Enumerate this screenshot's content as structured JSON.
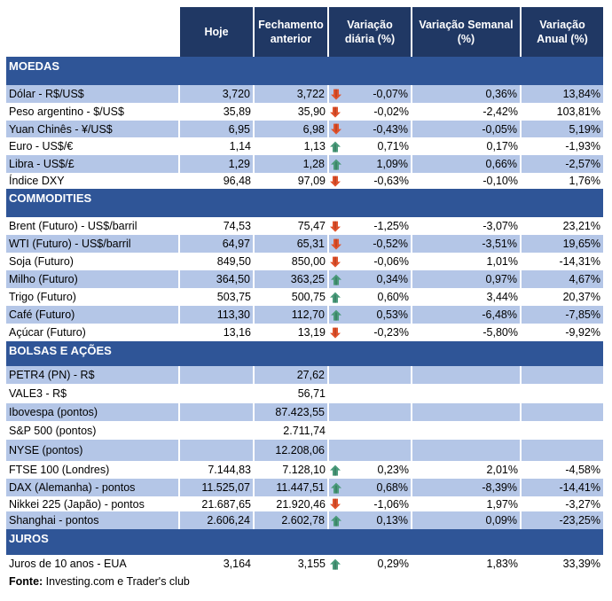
{
  "colors": {
    "header": "#203864",
    "section": "#2f5597",
    "row_alt": "#b4c6e7",
    "up": "#4a9a7a",
    "down": "#e0522c"
  },
  "headers": [
    "Hoje",
    "Fechamento anterior",
    "Variação diária (%)",
    "Variação Semanal (%)",
    "Variação Anual (%)"
  ],
  "sections": [
    {
      "title": "MOEDAS",
      "rows": [
        {
          "label": "Dólar - R$/US$",
          "hoje": "3,720",
          "fech": "3,722",
          "dir": "down",
          "dia": "-0,07%",
          "sem": "0,36%",
          "ano": "13,84%"
        },
        {
          "label": "Peso argentino - $/US$",
          "hoje": "35,89",
          "fech": "35,90",
          "dir": "down",
          "dia": "-0,02%",
          "sem": "-2,42%",
          "ano": "103,81%"
        },
        {
          "label": "Yuan Chinês - ¥/US$",
          "hoje": "6,95",
          "fech": "6,98",
          "dir": "down",
          "dia": "-0,43%",
          "sem": "-0,05%",
          "ano": "5,19%"
        },
        {
          "label": "Euro - US$/€",
          "hoje": "1,14",
          "fech": "1,13",
          "dir": "up",
          "dia": "0,71%",
          "sem": "0,17%",
          "ano": "-1,93%"
        },
        {
          "label": "Libra - US$/£",
          "hoje": "1,29",
          "fech": "1,28",
          "dir": "up",
          "dia": "1,09%",
          "sem": "0,66%",
          "ano": "-2,57%"
        },
        {
          "label": "Índice DXY",
          "hoje": "96,48",
          "fech": "97,09",
          "dir": "down",
          "dia": "-0,63%",
          "sem": "-0,10%",
          "ano": "1,76%"
        }
      ]
    },
    {
      "title": "COMMODITIES",
      "rows": [
        {
          "label": "Brent (Futuro) - US$/barril",
          "hoje": "74,53",
          "fech": "75,47",
          "dir": "down",
          "dia": "-1,25%",
          "sem": "-3,07%",
          "ano": "23,21%"
        },
        {
          "label": "WTI (Futuro) - US$/barril",
          "hoje": "64,97",
          "fech": "65,31",
          "dir": "down",
          "dia": "-0,52%",
          "sem": "-3,51%",
          "ano": "19,65%"
        },
        {
          "label": "Soja (Futuro)",
          "hoje": "849,50",
          "fech": "850,00",
          "dir": "down",
          "dia": "-0,06%",
          "sem": "1,01%",
          "ano": "-14,31%"
        },
        {
          "label": "Milho (Futuro)",
          "hoje": "364,50",
          "fech": "363,25",
          "dir": "up",
          "dia": "0,34%",
          "sem": "0,97%",
          "ano": "4,67%"
        },
        {
          "label": "Trigo (Futuro)",
          "hoje": "503,75",
          "fech": "500,75",
          "dir": "up",
          "dia": "0,60%",
          "sem": "3,44%",
          "ano": "20,37%"
        },
        {
          "label": "Café (Futuro)",
          "hoje": "113,30",
          "fech": "112,70",
          "dir": "up",
          "dia": "0,53%",
          "sem": "-6,48%",
          "ano": "-7,85%"
        },
        {
          "label": "Açúcar (Futuro)",
          "hoje": "13,16",
          "fech": "13,19",
          "dir": "down",
          "dia": "-0,23%",
          "sem": "-5,80%",
          "ano": "-9,92%"
        }
      ]
    },
    {
      "title": "BOLSAS E AÇÕES",
      "rows": [
        {
          "label": "PETR4 (PN) - R$",
          "hoje": "",
          "fech": "27,62",
          "dir": "",
          "dia": "",
          "sem": "",
          "ano": ""
        },
        {
          "label": "VALE3 - R$",
          "hoje": "",
          "fech": "56,71",
          "dir": "",
          "dia": "",
          "sem": "",
          "ano": ""
        },
        {
          "label": "Ibovespa (pontos)",
          "hoje": "",
          "fech": "87.423,55",
          "dir": "",
          "dia": "",
          "sem": "",
          "ano": ""
        },
        {
          "label": "S&P 500 (pontos)",
          "hoje": "",
          "fech": "2.711,74",
          "dir": "",
          "dia": "",
          "sem": "",
          "ano": ""
        },
        {
          "label": "NYSE (pontos)",
          "hoje": "",
          "fech": "12.208,06",
          "dir": "",
          "dia": "",
          "sem": "",
          "ano": ""
        },
        {
          "label": "FTSE 100 (Londres)",
          "hoje": "7.144,83",
          "fech": "7.128,10",
          "dir": "up",
          "dia": "0,23%",
          "sem": "2,01%",
          "ano": "-4,58%"
        },
        {
          "label": "DAX (Alemanha) - pontos",
          "hoje": "11.525,07",
          "fech": "11.447,51",
          "dir": "up",
          "dia": "0,68%",
          "sem": "-8,39%",
          "ano": "-14,41%"
        },
        {
          "label": "Nikkei 225 (Japão) - pontos",
          "hoje": "21.687,65",
          "fech": "21.920,46",
          "dir": "down",
          "dia": "-1,06%",
          "sem": "1,97%",
          "ano": "-3,27%"
        },
        {
          "label": "Shanghai - pontos",
          "hoje": "2.606,24",
          "fech": "2.602,78",
          "dir": "up",
          "dia": "0,13%",
          "sem": "0,09%",
          "ano": "-23,25%"
        }
      ]
    },
    {
      "title": "JUROS",
      "rows": [
        {
          "label": "Juros de 10 anos - EUA",
          "hoje": "3,164",
          "fech": "3,155",
          "dir": "up",
          "dia": "0,29%",
          "sem": "1,83%",
          "ano": "33,39%"
        }
      ]
    }
  ],
  "footer": {
    "label": "Fonte:",
    "text": " Investing.com e Trader's club"
  }
}
